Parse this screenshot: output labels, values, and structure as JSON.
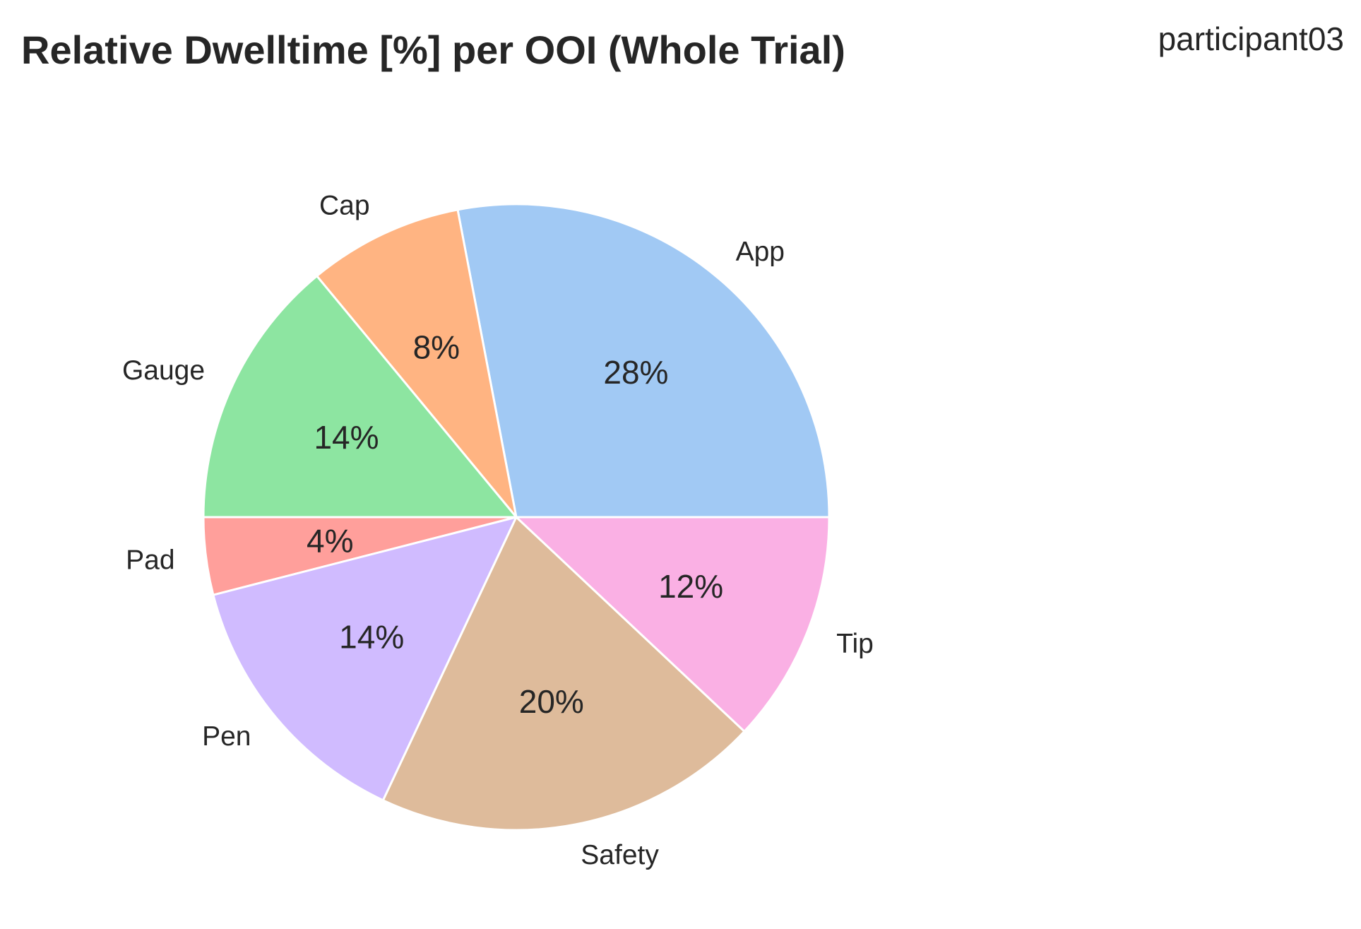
{
  "chart_data": {
    "type": "pie",
    "title": "Relative Dwelltime [%] per OOI (Whole Trial)",
    "subtitle": "participant03",
    "start_angle_deg": 0,
    "direction": "counterclockwise",
    "slices": [
      {
        "label": "App",
        "value": 28,
        "pct_label": "28%",
        "color": "#a1c9f4"
      },
      {
        "label": "Cap",
        "value": 8,
        "pct_label": "8%",
        "color": "#ffb482"
      },
      {
        "label": "Gauge",
        "value": 14,
        "pct_label": "14%",
        "color": "#8de5a1"
      },
      {
        "label": "Pad",
        "value": 4,
        "pct_label": "4%",
        "color": "#ff9f9b"
      },
      {
        "label": "Pen",
        "value": 14,
        "pct_label": "14%",
        "color": "#d0bbff"
      },
      {
        "label": "Safety",
        "value": 20,
        "pct_label": "20%",
        "color": "#debb9b"
      },
      {
        "label": "Tip",
        "value": 12,
        "pct_label": "12%",
        "color": "#fab0e4"
      }
    ]
  }
}
